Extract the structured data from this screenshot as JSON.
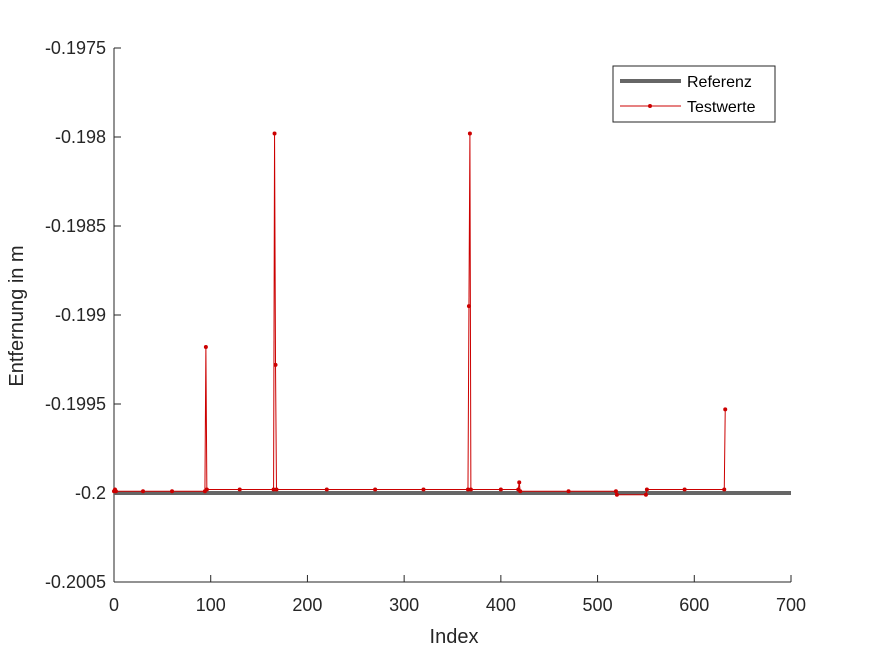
{
  "chart_data": {
    "type": "line",
    "xlabel": "Index",
    "ylabel": "Entfernung in m",
    "xlim": [
      0,
      700
    ],
    "ylim": [
      -0.2005,
      -0.1975
    ],
    "xticks": [
      0,
      100,
      200,
      300,
      400,
      500,
      600,
      700
    ],
    "xtick_labels": [
      "0",
      "100",
      "200",
      "300",
      "400",
      "500",
      "600",
      "700"
    ],
    "yticks": [
      -0.1975,
      -0.198,
      -0.1985,
      -0.199,
      -0.1995,
      -0.2,
      -0.2005
    ],
    "ytick_labels": [
      "-0.1975",
      "-0.198",
      "-0.1985",
      "-0.199",
      "-0.1995",
      "-0.2",
      "-0.2005"
    ],
    "grid": false,
    "legend": {
      "placement": "top-right",
      "entries": [
        "Referenz",
        "Testwerte"
      ]
    },
    "series": [
      {
        "name": "Referenz",
        "color": "#666666",
        "points": [
          [
            0,
            -0.2
          ],
          [
            700,
            -0.2
          ]
        ]
      },
      {
        "name": "Testwerte",
        "color": "#cc0000",
        "markers": true,
        "points": [
          [
            0,
            -0.19999
          ],
          [
            1,
            -0.19998
          ],
          [
            2,
            -0.19999
          ],
          [
            30,
            -0.19999
          ],
          [
            60,
            -0.19999
          ],
          [
            94,
            -0.19999
          ],
          [
            95,
            -0.19918
          ],
          [
            96,
            -0.19998
          ],
          [
            130,
            -0.19998
          ],
          [
            165,
            -0.19998
          ],
          [
            166,
            -0.19798
          ],
          [
            167,
            -0.19928
          ],
          [
            168,
            -0.19998
          ],
          [
            220,
            -0.19998
          ],
          [
            270,
            -0.19998
          ],
          [
            320,
            -0.19998
          ],
          [
            366,
            -0.19998
          ],
          [
            367,
            -0.19895
          ],
          [
            368,
            -0.19798
          ],
          [
            369,
            -0.19998
          ],
          [
            400,
            -0.19998
          ],
          [
            418,
            -0.19998
          ],
          [
            419,
            -0.19994
          ],
          [
            420,
            -0.19999
          ],
          [
            470,
            -0.19999
          ],
          [
            519,
            -0.19999
          ],
          [
            520,
            -0.20001
          ],
          [
            550,
            -0.20001
          ],
          [
            551,
            -0.19998
          ],
          [
            590,
            -0.19998
          ],
          [
            631,
            -0.19998
          ],
          [
            632,
            -0.19953
          ]
        ]
      }
    ]
  }
}
